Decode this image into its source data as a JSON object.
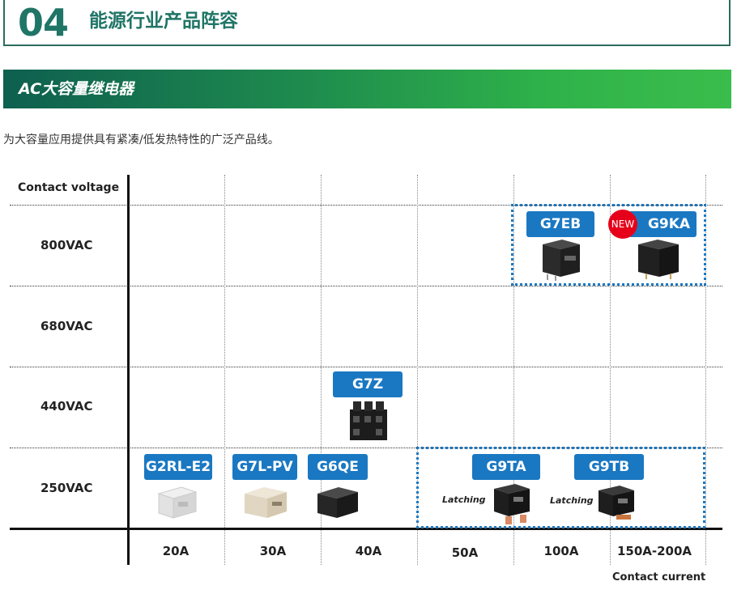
{
  "header": {
    "number": "04",
    "title": "能源行业产品阵容"
  },
  "band": {
    "title": "AC大容量继电器"
  },
  "description": "为大容量应用提供具有紧凑/低发热特性的广泛产品线。",
  "matrix": {
    "y_axis_title": "Contact voltage",
    "x_axis_title": "Contact current",
    "rows": [
      "800VAC",
      "680VAC",
      "440VAC",
      "250VAC"
    ],
    "columns": [
      "20A",
      "30A",
      "40A",
      "50A",
      "100A",
      "150A-200A"
    ],
    "new_badge": "NEW",
    "latching_label": "Latching",
    "products": [
      {
        "name": "G7EB",
        "voltage": "800VAC",
        "current": "100A"
      },
      {
        "name": "G9KA",
        "voltage": "800VAC",
        "current": "150A-200A",
        "new": true
      },
      {
        "name": "G7Z",
        "voltage": "440VAC",
        "current": "40A"
      },
      {
        "name": "G2RL-E2",
        "voltage": "250VAC",
        "current": "20A"
      },
      {
        "name": "G7L-PV",
        "voltage": "250VAC",
        "current": "30A"
      },
      {
        "name": "G6QE",
        "voltage": "250VAC",
        "current": "40A"
      },
      {
        "name": "G9TA",
        "voltage": "250VAC",
        "current": "50A-100A",
        "latching": true
      },
      {
        "name": "G9TB",
        "voltage": "250VAC",
        "current": "100A-150A",
        "latching": true
      }
    ]
  }
}
